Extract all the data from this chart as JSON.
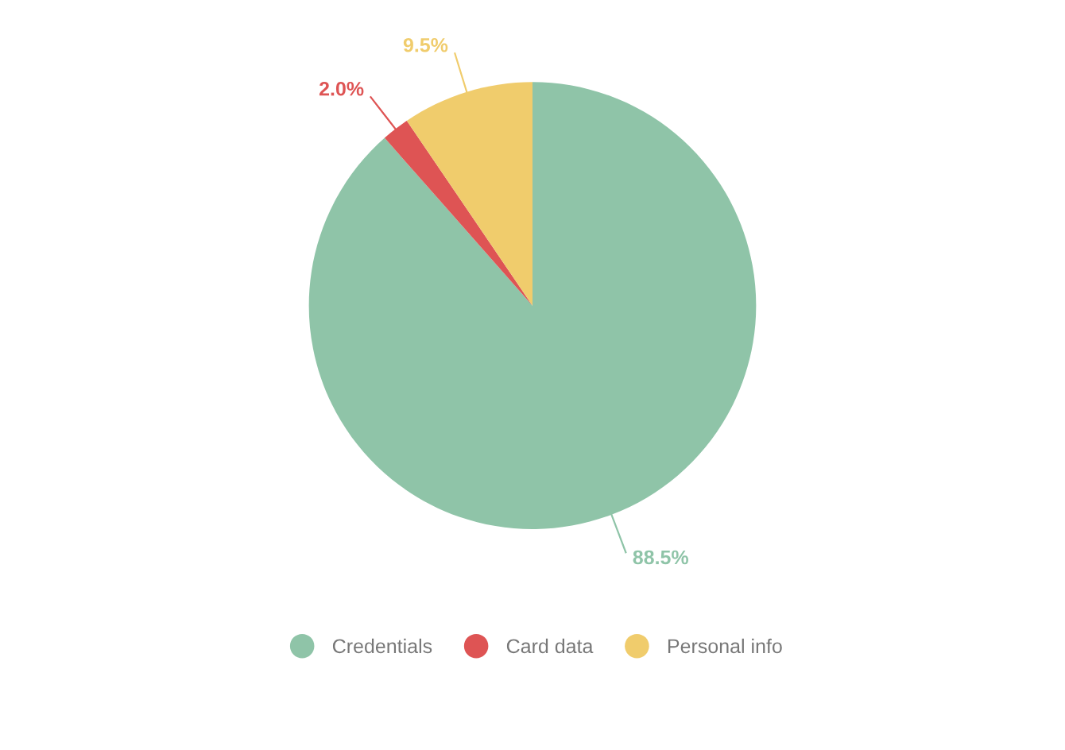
{
  "chart_data": {
    "type": "pie",
    "categories": [
      "Credentials",
      "Card data",
      "Personal info"
    ],
    "values": [
      88.5,
      2.0,
      9.5
    ],
    "colors": [
      "#8fc4a8",
      "#de5454",
      "#f0cc6c"
    ],
    "value_labels": [
      "88.5%",
      "2.0%",
      "9.5%"
    ],
    "legend": "bottom"
  }
}
